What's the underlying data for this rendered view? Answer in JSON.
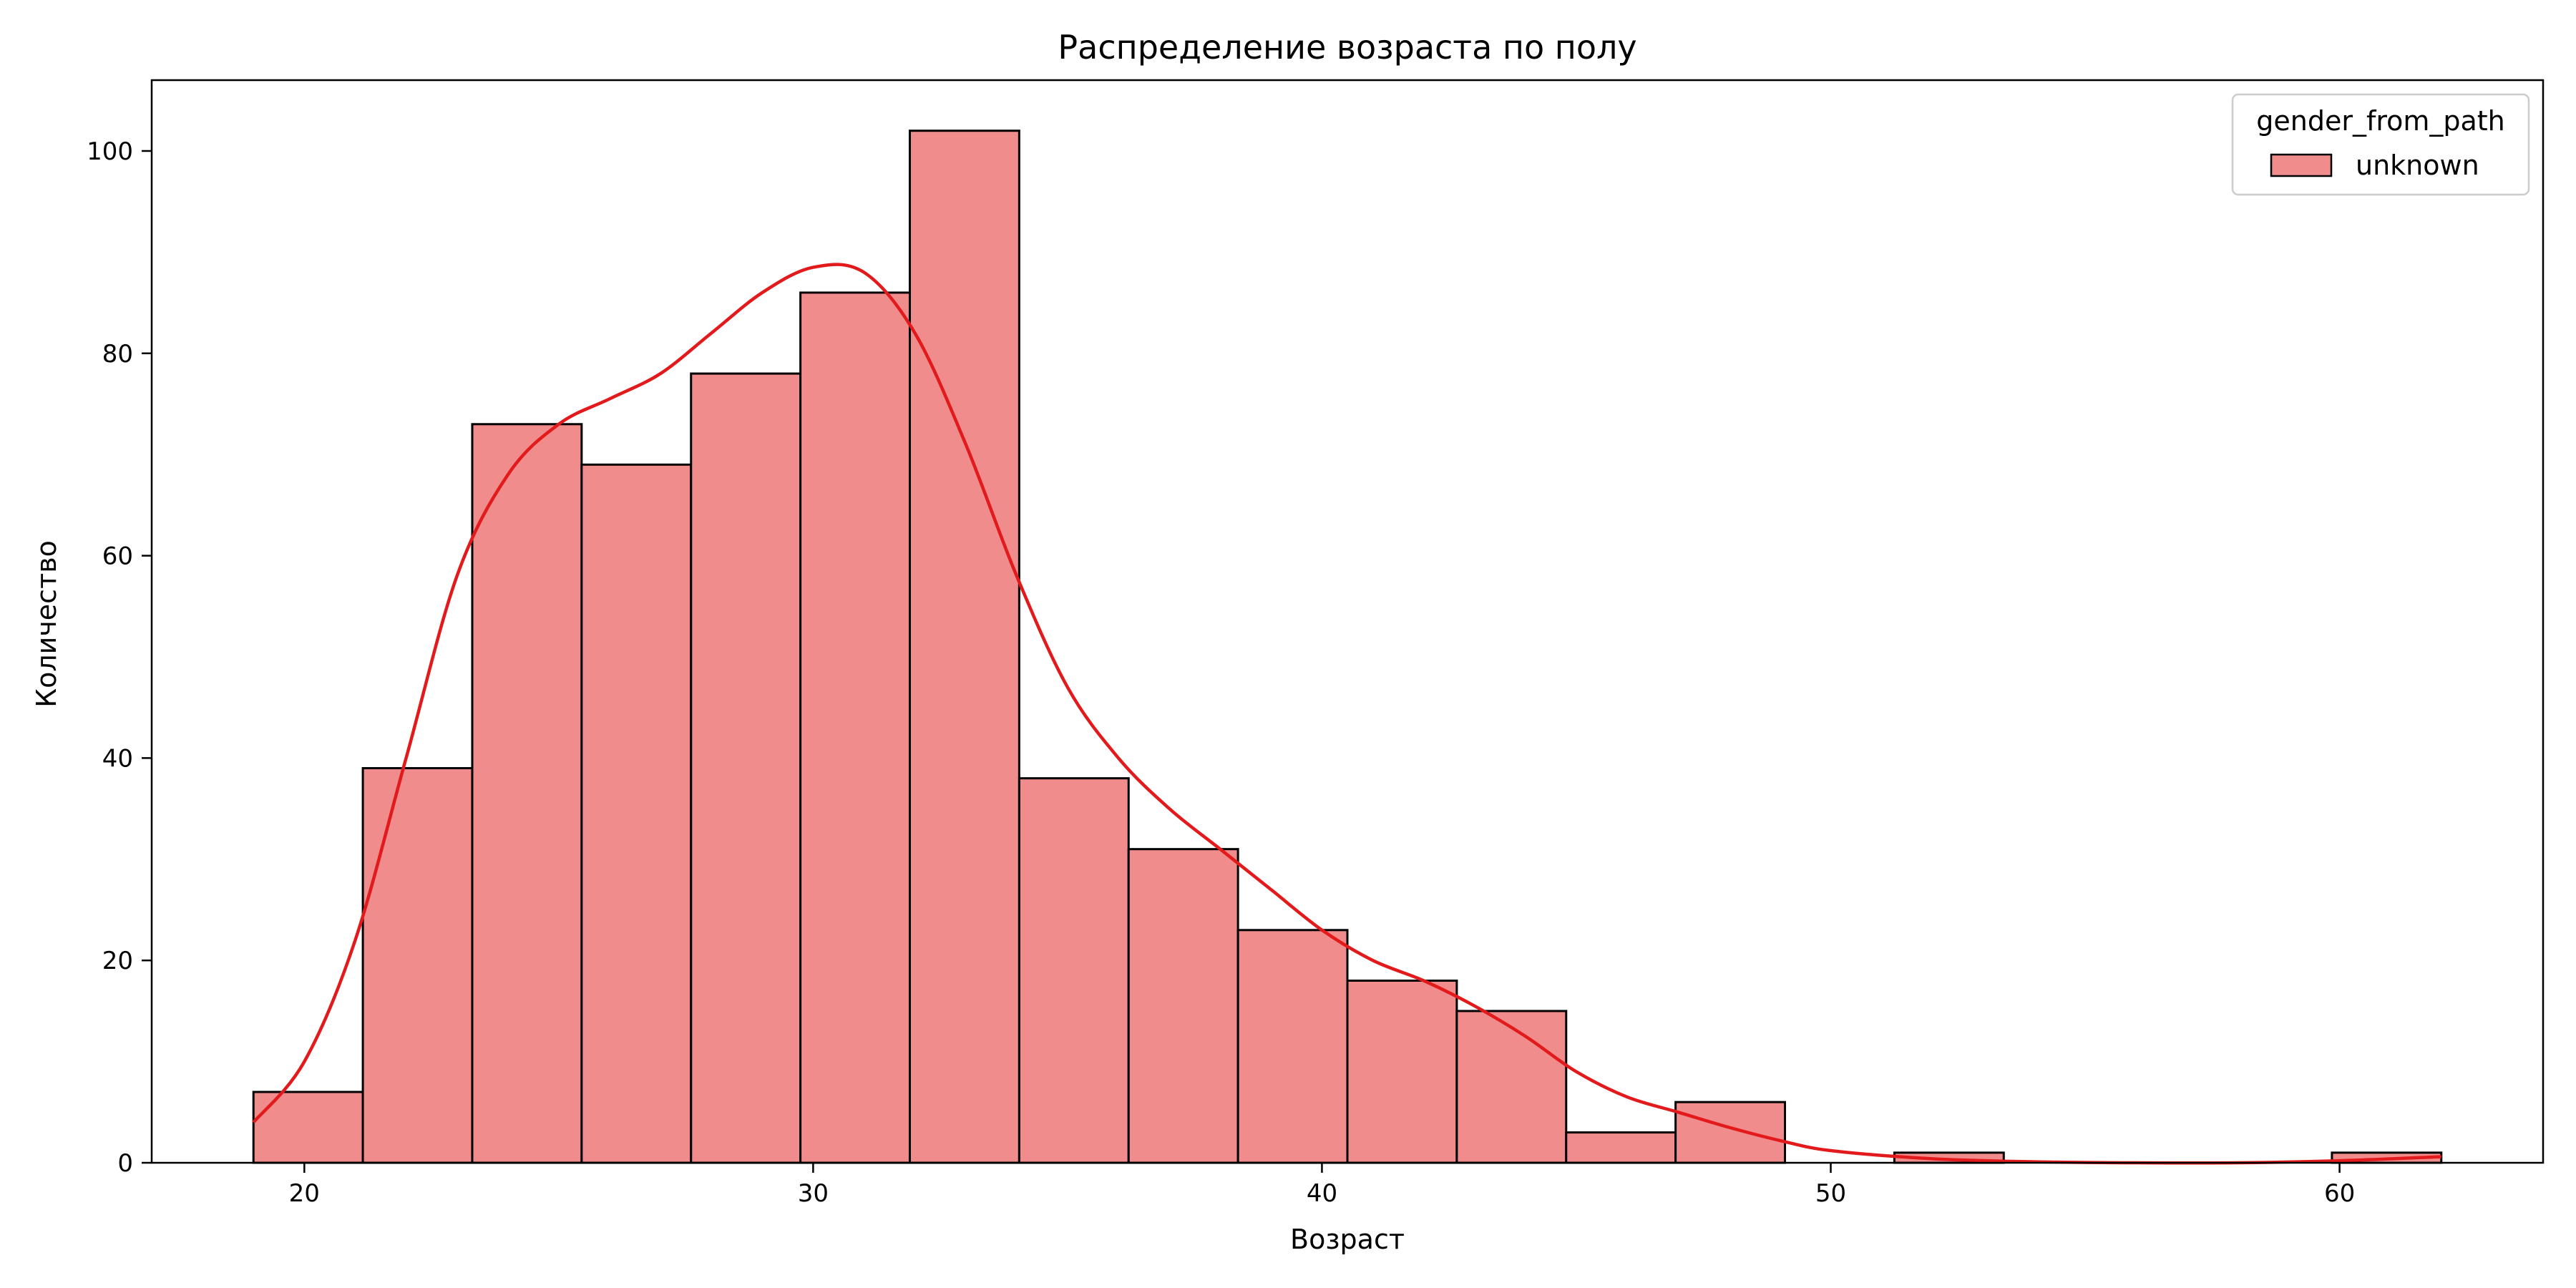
{
  "chart_data": {
    "type": "bar",
    "title": "Распределение возраста по полу",
    "xlabel": "Возраст",
    "ylabel": "Количество",
    "bin_edges": [
      19.0,
      21.15,
      23.3,
      25.45,
      27.6,
      29.75,
      31.9,
      34.05,
      36.2,
      38.35,
      40.5,
      42.65,
      44.8,
      46.95,
      49.1,
      51.25,
      53.4,
      55.55,
      57.7,
      59.85,
      62.0
    ],
    "series": [
      {
        "name": "unknown",
        "color": "#f08c8c",
        "edge_color": "#000000",
        "values": [
          7,
          39,
          73,
          69,
          78,
          86,
          102,
          38,
          31,
          23,
          18,
          15,
          3,
          6,
          0,
          1,
          0,
          0,
          0,
          1
        ]
      }
    ],
    "kde": {
      "color": "#e31a1c",
      "x": [
        19,
        20,
        21,
        22,
        23,
        24,
        25,
        26,
        27,
        28,
        29,
        30,
        31,
        32,
        33,
        34,
        35,
        36,
        37,
        38,
        39,
        40,
        41,
        42,
        43,
        44,
        45,
        46,
        47,
        48,
        49,
        50,
        52,
        54,
        56,
        58,
        60,
        62
      ],
      "y": [
        4,
        10,
        22,
        40,
        58,
        68,
        73,
        75.5,
        78,
        82,
        86,
        88.5,
        88,
        82,
        71,
        58,
        47,
        40,
        35,
        31,
        27,
        23,
        20,
        18,
        15.5,
        12.5,
        9,
        6.5,
        5,
        3.5,
        2.2,
        1.2,
        0.4,
        0.1,
        0,
        0,
        0.2,
        0.6
      ]
    },
    "xlim": [
      17.0,
      64.0
    ],
    "ylim": [
      0,
      107
    ],
    "xticks": [
      20,
      30,
      40,
      50,
      60
    ],
    "yticks": [
      0,
      20,
      40,
      60,
      80,
      100
    ],
    "grid": false,
    "legend": {
      "title": "gender_from_path",
      "placement": "top-right",
      "entries": [
        "unknown"
      ]
    }
  }
}
